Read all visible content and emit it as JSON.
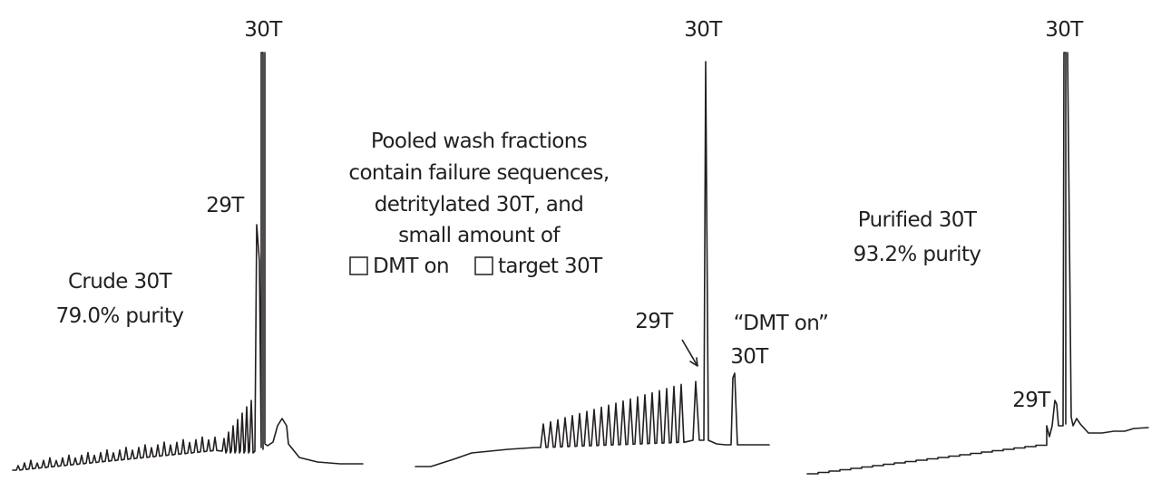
{
  "chart_data": [
    {
      "type": "line",
      "title": "",
      "annotations": {
        "main_peak": "30T",
        "minor_peak": "29T",
        "description_lines": [
          "Crude 30T",
          "79.0% purity"
        ]
      },
      "baseline_peak_count": 32,
      "ladder_peak_count": 7,
      "peaks": [
        {
          "name": "30T",
          "relative_height": 1.0
        },
        {
          "name": "29T",
          "relative_height": 0.57
        }
      ]
    },
    {
      "type": "line",
      "title": "",
      "annotations": {
        "main_peak": "30T",
        "minor_peak": "29T",
        "description_lines": [
          "Pooled wash fractions",
          "contain failure sequences,",
          "detritylated 30T, and",
          "small amount of",
          "DMT on",
          "target 30T"
        ],
        "dmt_on_label_lines": [
          "“DMT on”",
          "30T"
        ]
      },
      "ladder_peak_count": 20,
      "peaks": [
        {
          "name": "30T",
          "relative_height": 1.0
        },
        {
          "name": "29T",
          "relative_height": 0.14
        },
        {
          "name": "DMT on 30T",
          "relative_height": 0.17
        }
      ]
    },
    {
      "type": "line",
      "title": "",
      "annotations": {
        "main_peak": "30T",
        "minor_peak": "29T",
        "description_lines": [
          "Purified 30T",
          "93.2% purity"
        ]
      },
      "peaks": [
        {
          "name": "30T",
          "relative_height": 1.0
        },
        {
          "name": "29T",
          "relative_height": 0.09
        }
      ]
    }
  ]
}
